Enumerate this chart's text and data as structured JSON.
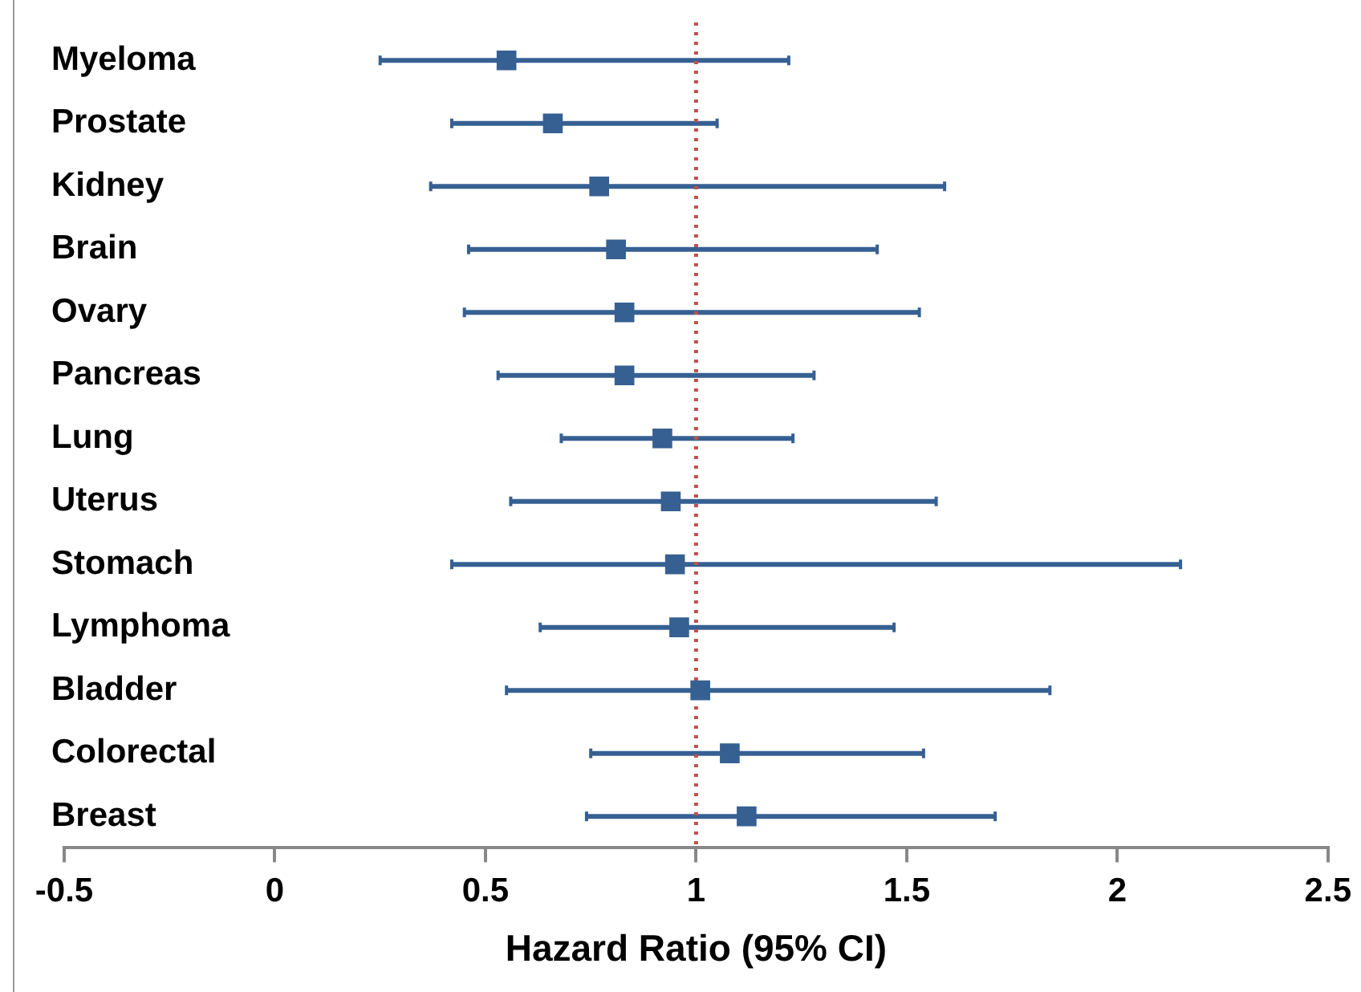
{
  "chart_data": {
    "type": "scatter",
    "orientation": "horizontal",
    "xlabel": "Hazard Ratio (95% CI)",
    "categories": [
      "Myeloma",
      "Prostate",
      "Kidney",
      "Brain",
      "Ovary",
      "Pancreas",
      "Lung",
      "Uterus",
      "Stomach",
      "Lymphoma",
      "Bladder",
      "Colorectal",
      "Breast"
    ],
    "values": [
      0.55,
      0.66,
      0.77,
      0.81,
      0.83,
      0.83,
      0.92,
      0.94,
      0.95,
      0.96,
      1.01,
      1.08,
      1.12
    ],
    "errors": [
      [
        0.25,
        1.22
      ],
      [
        0.42,
        1.05
      ],
      [
        0.37,
        1.59
      ],
      [
        0.46,
        1.43
      ],
      [
        0.45,
        1.53
      ],
      [
        0.53,
        1.28
      ],
      [
        0.68,
        1.23
      ],
      [
        0.56,
        1.57
      ],
      [
        0.42,
        2.15
      ],
      [
        0.63,
        1.47
      ],
      [
        0.55,
        1.84
      ],
      [
        0.75,
        1.54
      ],
      [
        0.74,
        1.71
      ]
    ],
    "color": "#366092",
    "marker": "square",
    "xlim": [
      -0.5,
      2.5
    ],
    "xticks": [
      -0.5,
      0,
      0.5,
      1,
      1.5,
      2,
      2.5
    ],
    "ref_lines": [
      {
        "axis": "x",
        "value": 1,
        "color": "#c0504d",
        "line_style": "dotted"
      }
    ],
    "grid": false,
    "legend": false
  }
}
